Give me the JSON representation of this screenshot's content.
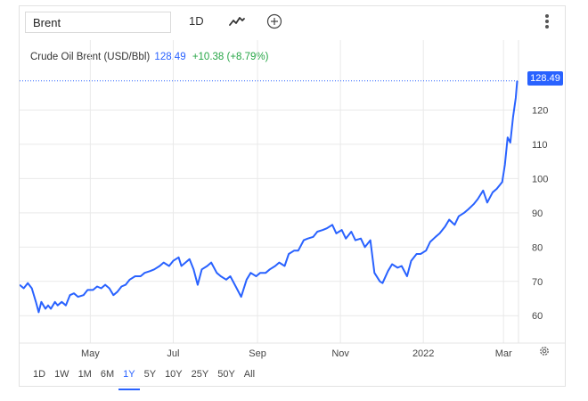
{
  "toolbar": {
    "search_value": "Brent",
    "interval_label": "1D",
    "chart_type_icon": "line-chart-icon",
    "compare_icon": "add-circle-icon",
    "more_icon": "more-vertical-icon"
  },
  "legend": {
    "name": "Crude Oil Brent (USD/Bbl)",
    "price": "128.49",
    "change": "+10.38 (+8.79%)"
  },
  "price_tag": "128.49",
  "colors": {
    "line": "#2962ff",
    "up": "#26a646",
    "grid": "#e9e9e9"
  },
  "ranges": {
    "items": [
      "1D",
      "1W",
      "1M",
      "6M",
      "1Y",
      "5Y",
      "10Y",
      "25Y",
      "50Y",
      "All"
    ],
    "active": "1Y"
  },
  "chart_data": {
    "type": "line",
    "title": "",
    "xlabel": "",
    "ylabel": "",
    "ylim": [
      52,
      130
    ],
    "y_ticks": [
      60,
      70,
      80,
      90,
      100,
      110,
      120
    ],
    "x_ticks": [
      {
        "label": "May",
        "x": "2021-05-01"
      },
      {
        "label": "Jul",
        "x": "2021-07-01"
      },
      {
        "label": "Sep",
        "x": "2021-09-01"
      },
      {
        "label": "Nov",
        "x": "2021-11-01"
      },
      {
        "label": "2022",
        "x": "2022-01-01"
      },
      {
        "label": "Mar",
        "x": "2022-03-01"
      }
    ],
    "xlim": [
      "2021-03-10",
      "2022-03-12"
    ],
    "grid": true,
    "series": [
      {
        "name": "Crude Oil Brent (USD/Bbl)",
        "points": [
          [
            "2021-03-10",
            69
          ],
          [
            "2021-03-13",
            68
          ],
          [
            "2021-03-16",
            69.5
          ],
          [
            "2021-03-19",
            68
          ],
          [
            "2021-03-22",
            64
          ],
          [
            "2021-03-24",
            61
          ],
          [
            "2021-03-26",
            64
          ],
          [
            "2021-03-29",
            62
          ],
          [
            "2021-03-31",
            63
          ],
          [
            "2021-04-02",
            62
          ],
          [
            "2021-04-05",
            64
          ],
          [
            "2021-04-07",
            63
          ],
          [
            "2021-04-10",
            64
          ],
          [
            "2021-04-13",
            63
          ],
          [
            "2021-04-16",
            66
          ],
          [
            "2021-04-19",
            66.5
          ],
          [
            "2021-04-22",
            65.5
          ],
          [
            "2021-04-26",
            66
          ],
          [
            "2021-04-29",
            67.5
          ],
          [
            "2021-05-03",
            67.5
          ],
          [
            "2021-05-06",
            68.5
          ],
          [
            "2021-05-09",
            68
          ],
          [
            "2021-05-12",
            69
          ],
          [
            "2021-05-15",
            68
          ],
          [
            "2021-05-18",
            66
          ],
          [
            "2021-05-21",
            67
          ],
          [
            "2021-05-24",
            68.5
          ],
          [
            "2021-05-27",
            69
          ],
          [
            "2021-05-30",
            70.5
          ],
          [
            "2021-06-03",
            71.5
          ],
          [
            "2021-06-07",
            71.5
          ],
          [
            "2021-06-10",
            72.5
          ],
          [
            "2021-06-14",
            73
          ],
          [
            "2021-06-17",
            73.5
          ],
          [
            "2021-06-21",
            74.5
          ],
          [
            "2021-06-24",
            75.5
          ],
          [
            "2021-06-28",
            74.5
          ],
          [
            "2021-07-01",
            76
          ],
          [
            "2021-07-05",
            77
          ],
          [
            "2021-07-07",
            74.5
          ],
          [
            "2021-07-10",
            75.5
          ],
          [
            "2021-07-13",
            76.5
          ],
          [
            "2021-07-16",
            73.5
          ],
          [
            "2021-07-19",
            69
          ],
          [
            "2021-07-22",
            73.5
          ],
          [
            "2021-07-26",
            74.5
          ],
          [
            "2021-07-29",
            75.5
          ],
          [
            "2021-08-02",
            72.5
          ],
          [
            "2021-08-05",
            71.5
          ],
          [
            "2021-08-09",
            70.5
          ],
          [
            "2021-08-12",
            71.5
          ],
          [
            "2021-08-16",
            68.5
          ],
          [
            "2021-08-20",
            65.5
          ],
          [
            "2021-08-24",
            70.5
          ],
          [
            "2021-08-27",
            72.5
          ],
          [
            "2021-08-31",
            71.5
          ],
          [
            "2021-09-03",
            72.5
          ],
          [
            "2021-09-07",
            72.5
          ],
          [
            "2021-09-10",
            73.5
          ],
          [
            "2021-09-14",
            74.5
          ],
          [
            "2021-09-17",
            75.5
          ],
          [
            "2021-09-21",
            74.5
          ],
          [
            "2021-09-24",
            78
          ],
          [
            "2021-09-28",
            79
          ],
          [
            "2021-10-01",
            79
          ],
          [
            "2021-10-05",
            82
          ],
          [
            "2021-10-08",
            82.5
          ],
          [
            "2021-10-12",
            83
          ],
          [
            "2021-10-15",
            84.5
          ],
          [
            "2021-10-19",
            85
          ],
          [
            "2021-10-22",
            85.5
          ],
          [
            "2021-10-26",
            86.5
          ],
          [
            "2021-10-29",
            84
          ],
          [
            "2021-11-02",
            85
          ],
          [
            "2021-11-05",
            82.5
          ],
          [
            "2021-11-09",
            84.5
          ],
          [
            "2021-11-12",
            82
          ],
          [
            "2021-11-16",
            82.5
          ],
          [
            "2021-11-19",
            80
          ],
          [
            "2021-11-23",
            82
          ],
          [
            "2021-11-26",
            72.5
          ],
          [
            "2021-11-30",
            70
          ],
          [
            "2021-12-02",
            69.5
          ],
          [
            "2021-12-06",
            73
          ],
          [
            "2021-12-09",
            75
          ],
          [
            "2021-12-13",
            74
          ],
          [
            "2021-12-16",
            74.5
          ],
          [
            "2021-12-20",
            71.5
          ],
          [
            "2021-12-23",
            76
          ],
          [
            "2021-12-27",
            78
          ],
          [
            "2021-12-30",
            78
          ],
          [
            "2022-01-03",
            79
          ],
          [
            "2022-01-06",
            81.5
          ],
          [
            "2022-01-10",
            83
          ],
          [
            "2022-01-13",
            84
          ],
          [
            "2022-01-17",
            86
          ],
          [
            "2022-01-20",
            88
          ],
          [
            "2022-01-24",
            86.5
          ],
          [
            "2022-01-27",
            89
          ],
          [
            "2022-01-31",
            90
          ],
          [
            "2022-02-03",
            91
          ],
          [
            "2022-02-07",
            92.5
          ],
          [
            "2022-02-10",
            94
          ],
          [
            "2022-02-14",
            96.5
          ],
          [
            "2022-02-17",
            93
          ],
          [
            "2022-02-21",
            96
          ],
          [
            "2022-02-24",
            97
          ],
          [
            "2022-02-28",
            99
          ],
          [
            "2022-03-02",
            104
          ],
          [
            "2022-03-04",
            112
          ],
          [
            "2022-03-06",
            110.5
          ],
          [
            "2022-03-08",
            118
          ],
          [
            "2022-03-10",
            123.5
          ],
          [
            "2022-03-11",
            128.49
          ]
        ]
      }
    ]
  }
}
